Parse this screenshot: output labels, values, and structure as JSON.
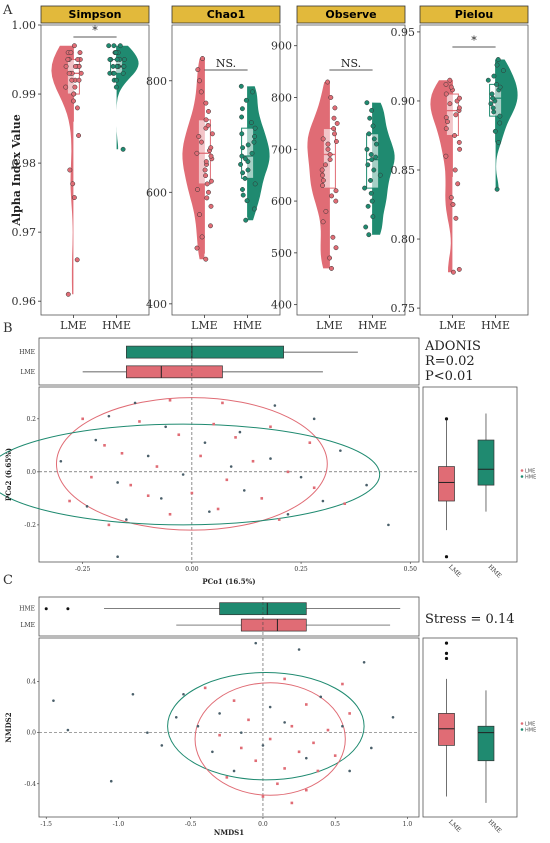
{
  "colors": {
    "LME": "#e06c75",
    "HME": "#1f8a70",
    "strip": "#e2b93b",
    "frame": "#555555"
  },
  "panel_labels": {
    "A": "A",
    "B": "B",
    "C": "C"
  },
  "panelA": {
    "ylabel": "Alpha Index Value",
    "groups": [
      "LME",
      "HME"
    ],
    "chart_data": [
      {
        "type": "violin-box",
        "title": "Simpson",
        "ylim": [
          0.958,
          1.0
        ],
        "ticks": [
          "0.96",
          "0.97",
          "0.98",
          "0.99",
          "1.00"
        ],
        "tickvals": [
          0.96,
          0.97,
          0.98,
          0.99,
          1.0
        ],
        "sig": "*",
        "series": [
          {
            "name": "LME",
            "median": 0.993,
            "q1": 0.99,
            "q3": 0.995,
            "lo": 0.986,
            "hi": 0.997,
            "points": [
              0.961,
              0.966,
              0.975,
              0.977,
              0.979,
              0.984,
              0.988,
              0.989,
              0.99,
              0.99,
              0.991,
              0.991,
              0.992,
              0.992,
              0.992,
              0.993,
              0.993,
              0.993,
              0.993,
              0.994,
              0.994,
              0.994,
              0.994,
              0.994,
              0.995,
              0.995,
              0.995,
              0.995,
              0.996,
              0.996,
              0.996,
              0.997
            ]
          },
          {
            "name": "HME",
            "median": 0.994,
            "q1": 0.993,
            "q3": 0.995,
            "lo": 0.991,
            "hi": 0.997,
            "points": [
              0.982,
              0.991,
              0.992,
              0.992,
              0.993,
              0.993,
              0.993,
              0.993,
              0.994,
              0.994,
              0.994,
              0.994,
              0.994,
              0.994,
              0.995,
              0.995,
              0.995,
              0.995,
              0.995,
              0.996,
              0.996,
              0.996,
              0.996,
              0.997,
              0.997,
              0.997
            ]
          }
        ]
      },
      {
        "type": "violin-box",
        "title": "Chao1",
        "ylim": [
          380,
          900
        ],
        "ticks": [
          "400",
          "600",
          "800"
        ],
        "tickvals": [
          400,
          600,
          800
        ],
        "sig": "NS.",
        "series": [
          {
            "name": "LME",
            "median": 670,
            "q1": 615,
            "q3": 730,
            "lo": 490,
            "hi": 840,
            "points": [
              480,
              500,
              520,
              540,
              560,
              575,
              590,
              600,
              605,
              615,
              620,
              630,
              640,
              650,
              655,
              660,
              665,
              670,
              675,
              680,
              690,
              700,
              705,
              715,
              720,
              730,
              745,
              760,
              780,
              800,
              820,
              840
            ]
          },
          {
            "name": "HME",
            "median": 665,
            "q1": 625,
            "q3": 715,
            "lo": 555,
            "hi": 790,
            "points": [
              550,
              570,
              585,
              595,
              605,
              615,
              625,
              635,
              640,
              650,
              655,
              660,
              665,
              670,
              680,
              685,
              690,
              700,
              705,
              715,
              725,
              735,
              750,
              765,
              780,
              790
            ]
          }
        ]
      },
      {
        "type": "violin-box",
        "title": "Observe",
        "ylim": [
          380,
          940
        ],
        "ticks": [
          "400",
          "500",
          "600",
          "700",
          "800",
          "900"
        ],
        "tickvals": [
          400,
          500,
          600,
          700,
          800,
          900
        ],
        "sig": "NS.",
        "series": [
          {
            "name": "LME",
            "median": 690,
            "q1": 625,
            "q3": 740,
            "lo": 470,
            "hi": 830,
            "points": [
              470,
              490,
              510,
              530,
              560,
              580,
              600,
              610,
              620,
              630,
              640,
              650,
              660,
              670,
              680,
              690,
              700,
              710,
              715,
              720,
              730,
              740,
              750,
              760,
              780,
              800,
              830
            ]
          },
          {
            "name": "HME",
            "median": 680,
            "q1": 625,
            "q3": 730,
            "lo": 535,
            "hi": 790,
            "points": [
              535,
              550,
              570,
              590,
              600,
              615,
              625,
              640,
              650,
              660,
              670,
              680,
              685,
              690,
              700,
              710,
              720,
              730,
              745,
              760,
              775,
              790
            ]
          }
        ]
      },
      {
        "type": "violin-box",
        "title": "Pielou",
        "ylim": [
          0.745,
          0.955
        ],
        "ticks": [
          "0.75",
          "0.80",
          "0.85",
          "0.90",
          "0.95"
        ],
        "tickvals": [
          0.75,
          0.8,
          0.85,
          0.9,
          0.95
        ],
        "sig": "*",
        "series": [
          {
            "name": "LME",
            "median": 0.893,
            "q1": 0.875,
            "q3": 0.905,
            "lo": 0.845,
            "hi": 0.915,
            "points": [
              0.776,
              0.778,
              0.815,
              0.825,
              0.83,
              0.84,
              0.85,
              0.86,
              0.865,
              0.87,
              0.875,
              0.88,
              0.885,
              0.888,
              0.89,
              0.893,
              0.895,
              0.898,
              0.9,
              0.902,
              0.905,
              0.908,
              0.91,
              0.912,
              0.915
            ]
          },
          {
            "name": "HME",
            "median": 0.902,
            "q1": 0.889,
            "q3": 0.912,
            "lo": 0.87,
            "hi": 0.93,
            "points": [
              0.836,
              0.87,
              0.878,
              0.884,
              0.889,
              0.892,
              0.895,
              0.898,
              0.9,
              0.902,
              0.905,
              0.908,
              0.91,
              0.912,
              0.915,
              0.918,
              0.922,
              0.926,
              0.93
            ]
          }
        ]
      }
    ]
  },
  "panelB": {
    "stats": [
      "ADONIS",
      "R=0.02",
      "P<0.01"
    ],
    "chart_data": {
      "type": "scatter",
      "xlabel": "PCo1 (16.5%)",
      "ylabel": "PCo2 (6.65%)",
      "xlim": [
        -0.35,
        0.52
      ],
      "ylim": [
        -0.34,
        0.32
      ],
      "xticks": [
        "-0.25",
        "0.00",
        "0.25",
        "0.50"
      ],
      "xtickvals": [
        -0.25,
        0,
        0.25,
        0.5
      ],
      "yticks": [
        "-0.2",
        "0.0",
        "0.2"
      ],
      "ytickvals": [
        -0.2,
        0,
        0.2
      ],
      "legend": [
        "LME",
        "HME"
      ],
      "legend_position": "right",
      "ellipses": [
        {
          "name": "LME",
          "cx": 0.0,
          "cy": 0.03,
          "rx": 0.31,
          "ry": 0.25
        },
        {
          "name": "HME",
          "cx": -0.02,
          "cy": -0.01,
          "rx": 0.45,
          "ry": 0.19
        }
      ],
      "points_LME": [
        [
          -0.05,
          0.27
        ],
        [
          0.07,
          0.26
        ],
        [
          -0.25,
          0.2
        ],
        [
          -0.12,
          0.19
        ],
        [
          0.05,
          0.18
        ],
        [
          0.18,
          0.17
        ],
        [
          -0.03,
          0.14
        ],
        [
          0.1,
          0.13
        ],
        [
          -0.2,
          0.1
        ],
        [
          0.27,
          0.11
        ],
        [
          -0.16,
          0.07
        ],
        [
          0.02,
          0.06
        ],
        [
          0.14,
          0.04
        ],
        [
          -0.08,
          0.02
        ],
        [
          0.22,
          0.0
        ],
        [
          -0.23,
          -0.02
        ],
        [
          0.08,
          -0.03
        ],
        [
          -0.14,
          -0.05
        ],
        [
          0.28,
          -0.06
        ],
        [
          0.0,
          -0.08
        ],
        [
          -0.1,
          -0.09
        ],
        [
          0.16,
          -0.1
        ],
        [
          -0.28,
          -0.11
        ],
        [
          0.35,
          -0.12
        ],
        [
          0.06,
          -0.14
        ],
        [
          -0.05,
          -0.16
        ],
        [
          0.2,
          -0.18
        ],
        [
          -0.19,
          -0.2
        ]
      ],
      "points_HME": [
        [
          -0.13,
          0.26
        ],
        [
          0.19,
          0.25
        ],
        [
          -0.19,
          0.21
        ],
        [
          0.28,
          0.2
        ],
        [
          -0.06,
          0.17
        ],
        [
          0.11,
          0.15
        ],
        [
          -0.22,
          0.12
        ],
        [
          0.03,
          0.11
        ],
        [
          0.34,
          0.08
        ],
        [
          -0.1,
          0.06
        ],
        [
          0.18,
          0.05
        ],
        [
          -0.3,
          0.04
        ],
        [
          0.09,
          0.02
        ],
        [
          -0.02,
          -0.01
        ],
        [
          0.25,
          -0.02
        ],
        [
          -0.17,
          -0.04
        ],
        [
          0.4,
          -0.05
        ],
        [
          0.12,
          -0.07
        ],
        [
          -0.07,
          -0.1
        ],
        [
          0.3,
          -0.11
        ],
        [
          -0.24,
          -0.13
        ],
        [
          0.04,
          -0.15
        ],
        [
          0.22,
          -0.16
        ],
        [
          -0.15,
          -0.18
        ],
        [
          0.45,
          -0.2
        ],
        [
          -0.17,
          -0.32
        ]
      ],
      "box_x": {
        "LME": {
          "lo": -0.25,
          "q1": -0.15,
          "median": -0.07,
          "q3": 0.07,
          "hi": 0.3
        },
        "HME": {
          "lo": -0.15,
          "q1": -0.15,
          "median": 0.0,
          "q3": 0.21,
          "hi": 0.38
        }
      },
      "box_y": {
        "LME": {
          "lo": -0.22,
          "q1": -0.11,
          "median": -0.04,
          "q3": 0.02,
          "hi": 0.2,
          "outliers": [
            0.2,
            -0.32
          ]
        },
        "HME": {
          "lo": -0.15,
          "q1": -0.05,
          "median": 0.01,
          "q3": 0.12,
          "hi": 0.22
        }
      }
    }
  },
  "panelC": {
    "stats": [
      "Stress = 0.14"
    ],
    "chart_data": {
      "type": "scatter",
      "xlabel": "NMDS1",
      "ylabel": "NMDS2",
      "xlim": [
        -1.55,
        1.08
      ],
      "ylim": [
        -0.66,
        0.74
      ],
      "xticks": [
        "-1.5",
        "-1.0",
        "-0.5",
        "0.0",
        "0.5",
        "1.0"
      ],
      "xtickvals": [
        -1.5,
        -1,
        -0.5,
        0,
        0.5,
        1
      ],
      "yticks": [
        "-0.4",
        "0.0",
        "0.4"
      ],
      "ytickvals": [
        -0.4,
        0,
        0.4
      ],
      "legend": [
        "LME",
        "HME"
      ],
      "legend_position": "right",
      "ellipses": [
        {
          "name": "HME",
          "cx": 0.02,
          "cy": 0.05,
          "rx": 0.68,
          "ry": 0.42
        },
        {
          "name": "LME",
          "cx": 0.05,
          "cy": -0.05,
          "rx": 0.52,
          "ry": 0.44
        }
      ],
      "points_LME": [
        [
          -0.4,
          0.35
        ],
        [
          0.15,
          0.42
        ],
        [
          0.55,
          0.38
        ],
        [
          -0.2,
          0.25
        ],
        [
          0.3,
          0.22
        ],
        [
          0.6,
          0.15
        ],
        [
          -0.1,
          0.1
        ],
        [
          0.2,
          0.05
        ],
        [
          0.45,
          0.02
        ],
        [
          -0.3,
          -0.02
        ],
        [
          0.05,
          -0.05
        ],
        [
          0.35,
          -0.08
        ],
        [
          -0.15,
          -0.12
        ],
        [
          0.25,
          -0.15
        ],
        [
          0.5,
          -0.18
        ],
        [
          -0.05,
          -0.22
        ],
        [
          0.15,
          -0.28
        ],
        [
          0.38,
          -0.3
        ],
        [
          -0.25,
          -0.35
        ],
        [
          0.1,
          -0.4
        ],
        [
          0.3,
          -0.45
        ],
        [
          0.0,
          -0.5
        ],
        [
          0.2,
          -0.55
        ]
      ],
      "points_HME": [
        [
          -1.45,
          0.25
        ],
        [
          -1.35,
          0.02
        ],
        [
          -0.9,
          0.3
        ],
        [
          -0.55,
          0.3
        ],
        [
          -0.05,
          0.7
        ],
        [
          0.25,
          0.65
        ],
        [
          0.7,
          0.55
        ],
        [
          -0.6,
          0.12
        ],
        [
          -0.3,
          0.15
        ],
        [
          0.05,
          0.2
        ],
        [
          0.4,
          0.28
        ],
        [
          -0.8,
          0.0
        ],
        [
          -0.45,
          0.05
        ],
        [
          -0.15,
          0.0
        ],
        [
          0.15,
          0.08
        ],
        [
          0.55,
          0.05
        ],
        [
          0.9,
          0.12
        ],
        [
          -0.7,
          -0.1
        ],
        [
          -0.35,
          -0.15
        ],
        [
          0.0,
          -0.1
        ],
        [
          0.3,
          -0.2
        ],
        [
          0.75,
          -0.12
        ],
        [
          -1.05,
          -0.38
        ],
        [
          -0.2,
          -0.3
        ],
        [
          0.6,
          -0.3
        ]
      ],
      "box_x": {
        "LME": {
          "lo": -0.6,
          "q1": -0.15,
          "median": 0.1,
          "q3": 0.3,
          "hi": 0.88
        },
        "HME": {
          "lo": -1.1,
          "q1": -0.3,
          "median": 0.03,
          "q3": 0.3,
          "hi": 0.95,
          "outliers": [
            -1.5,
            -1.35
          ]
        }
      },
      "box_y": {
        "LME": {
          "lo": -0.5,
          "q1": -0.1,
          "median": 0.03,
          "q3": 0.15,
          "hi": 0.42,
          "outliers": [
            0.7,
            0.62,
            0.58
          ]
        },
        "HME": {
          "lo": -0.55,
          "q1": -0.22,
          "median": 0.0,
          "q3": 0.05,
          "hi": 0.33
        }
      }
    }
  }
}
